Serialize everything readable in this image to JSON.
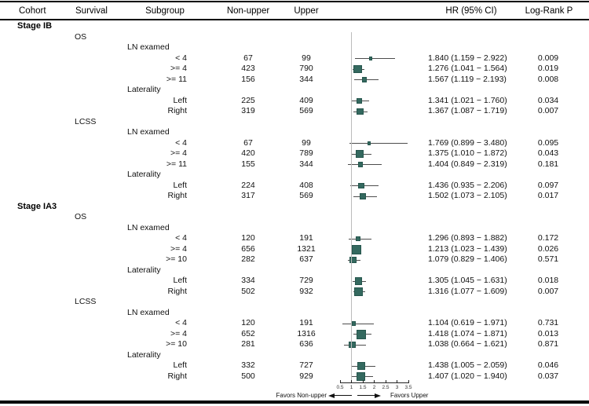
{
  "header": {
    "cohort": "Cohort",
    "survival": "Survival",
    "subgroup": "Subgroup",
    "non_upper": "Non-upper",
    "upper": "Upper",
    "hr": "HR (95% CI)",
    "logrank": "Log-Rank P"
  },
  "colors": {
    "marker": "#34695f",
    "marker_border": "#26564d",
    "ci_line": "#4d4d4d",
    "ref_line": "#bcbcbc"
  },
  "chart_data": {
    "type": "forest",
    "xlim": [
      0.5,
      3.5
    ],
    "ref_line": 1.0,
    "ticks": [
      0.5,
      1,
      1.5,
      2,
      2.5,
      3,
      3.5
    ],
    "tick_labels": [
      "0.5",
      "1",
      "1.5",
      "2",
      "2.5",
      "3",
      "3.5"
    ],
    "favors_left": "Favors Non-upper",
    "favors_right": "Favors Upper",
    "groups": [
      {
        "cohort": "Stage IB",
        "survivals": [
          {
            "name": "OS",
            "subgroups": [
              {
                "label": "LN examed",
                "items": [
                  {
                    "name": "< 4",
                    "non_upper": 67,
                    "upper": 99,
                    "hr": 1.84,
                    "lo": 1.159,
                    "hi": 2.922,
                    "hr_text": "1.840 (1.159 − 2.922)",
                    "p": "0.009"
                  },
                  {
                    "name": ">= 4",
                    "non_upper": 423,
                    "upper": 790,
                    "hr": 1.276,
                    "lo": 1.041,
                    "hi": 1.564,
                    "hr_text": "1.276 (1.041 − 1.564)",
                    "p": "0.019"
                  },
                  {
                    "name": ">= 11",
                    "non_upper": 156,
                    "upper": 344,
                    "hr": 1.567,
                    "lo": 1.119,
                    "hi": 2.193,
                    "hr_text": "1.567 (1.119 − 2.193)",
                    "p": "0.008"
                  }
                ]
              },
              {
                "label": "Laterality",
                "items": [
                  {
                    "name": "Left",
                    "non_upper": 225,
                    "upper": 409,
                    "hr": 1.341,
                    "lo": 1.021,
                    "hi": 1.76,
                    "hr_text": "1.341 (1.021 − 1.760)",
                    "p": "0.034"
                  },
                  {
                    "name": "Right",
                    "non_upper": 319,
                    "upper": 569,
                    "hr": 1.367,
                    "lo": 1.087,
                    "hi": 1.719,
                    "hr_text": "1.367 (1.087 − 1.719)",
                    "p": "0.007"
                  }
                ]
              }
            ]
          },
          {
            "name": "LCSS",
            "subgroups": [
              {
                "label": "LN examed",
                "items": [
                  {
                    "name": "< 4",
                    "non_upper": 67,
                    "upper": 99,
                    "hr": 1.769,
                    "lo": 0.899,
                    "hi": 3.48,
                    "hr_text": "1.769 (0.899 − 3.480)",
                    "p": "0.095"
                  },
                  {
                    "name": ">= 4",
                    "non_upper": 420,
                    "upper": 789,
                    "hr": 1.375,
                    "lo": 1.01,
                    "hi": 1.872,
                    "hr_text": "1.375 (1.010 − 1.872)",
                    "p": "0.043"
                  },
                  {
                    "name": ">= 11",
                    "non_upper": 155,
                    "upper": 344,
                    "hr": 1.404,
                    "lo": 0.849,
                    "hi": 2.319,
                    "hr_text": "1.404 (0.849 − 2.319)",
                    "p": "0.181"
                  }
                ]
              },
              {
                "label": "Laterality",
                "items": [
                  {
                    "name": "Left",
                    "non_upper": 224,
                    "upper": 408,
                    "hr": 1.436,
                    "lo": 0.935,
                    "hi": 2.206,
                    "hr_text": "1.436 (0.935 − 2.206)",
                    "p": "0.097"
                  },
                  {
                    "name": "Right",
                    "non_upper": 317,
                    "upper": 569,
                    "hr": 1.502,
                    "lo": 1.073,
                    "hi": 2.105,
                    "hr_text": "1.502 (1.073 − 2.105)",
                    "p": "0.017"
                  }
                ]
              }
            ]
          }
        ]
      },
      {
        "cohort": "Stage IA3",
        "survivals": [
          {
            "name": "OS",
            "subgroups": [
              {
                "label": "LN examed",
                "items": [
                  {
                    "name": "< 4",
                    "non_upper": 120,
                    "upper": 191,
                    "hr": 1.296,
                    "lo": 0.893,
                    "hi": 1.882,
                    "hr_text": "1.296 (0.893 − 1.882)",
                    "p": "0.172"
                  },
                  {
                    "name": ">= 4",
                    "non_upper": 656,
                    "upper": 1321,
                    "hr": 1.213,
                    "lo": 1.023,
                    "hi": 1.439,
                    "hr_text": "1.213 (1.023 − 1.439)",
                    "p": "0.026"
                  },
                  {
                    "name": ">= 10",
                    "non_upper": 282,
                    "upper": 637,
                    "hr": 1.079,
                    "lo": 0.829,
                    "hi": 1.406,
                    "hr_text": "1.079 (0.829 − 1.406)",
                    "p": "0.571"
                  }
                ]
              },
              {
                "label": "Laterality",
                "items": [
                  {
                    "name": "Left",
                    "non_upper": 334,
                    "upper": 729,
                    "hr": 1.305,
                    "lo": 1.045,
                    "hi": 1.631,
                    "hr_text": "1.305 (1.045 − 1.631)",
                    "p": "0.018"
                  },
                  {
                    "name": "Right",
                    "non_upper": 502,
                    "upper": 932,
                    "hr": 1.316,
                    "lo": 1.077,
                    "hi": 1.609,
                    "hr_text": "1.316 (1.077 − 1.609)",
                    "p": "0.007"
                  }
                ]
              }
            ]
          },
          {
            "name": "LCSS",
            "subgroups": [
              {
                "label": "LN examed",
                "items": [
                  {
                    "name": "< 4",
                    "non_upper": 120,
                    "upper": 191,
                    "hr": 1.104,
                    "lo": 0.619,
                    "hi": 1.971,
                    "hr_text": "1.104 (0.619 − 1.971)",
                    "p": "0.731"
                  },
                  {
                    "name": ">= 4",
                    "non_upper": 652,
                    "upper": 1316,
                    "hr": 1.418,
                    "lo": 1.074,
                    "hi": 1.871,
                    "hr_text": "1.418 (1.074 − 1.871)",
                    "p": "0.013"
                  },
                  {
                    "name": ">= 10",
                    "non_upper": 281,
                    "upper": 636,
                    "hr": 1.038,
                    "lo": 0.664,
                    "hi": 1.621,
                    "hr_text": "1.038 (0.664 − 1.621)",
                    "p": "0.871"
                  }
                ]
              },
              {
                "label": "Laterality",
                "items": [
                  {
                    "name": "Left",
                    "non_upper": 332,
                    "upper": 727,
                    "hr": 1.438,
                    "lo": 1.005,
                    "hi": 2.059,
                    "hr_text": "1.438 (1.005 − 2.059)",
                    "p": "0.046"
                  },
                  {
                    "name": "Right",
                    "non_upper": 500,
                    "upper": 929,
                    "hr": 1.407,
                    "lo": 1.02,
                    "hi": 1.94,
                    "hr_text": "1.407 (1.020 − 1.940)",
                    "p": "0.037"
                  }
                ]
              }
            ]
          }
        ]
      }
    ]
  }
}
